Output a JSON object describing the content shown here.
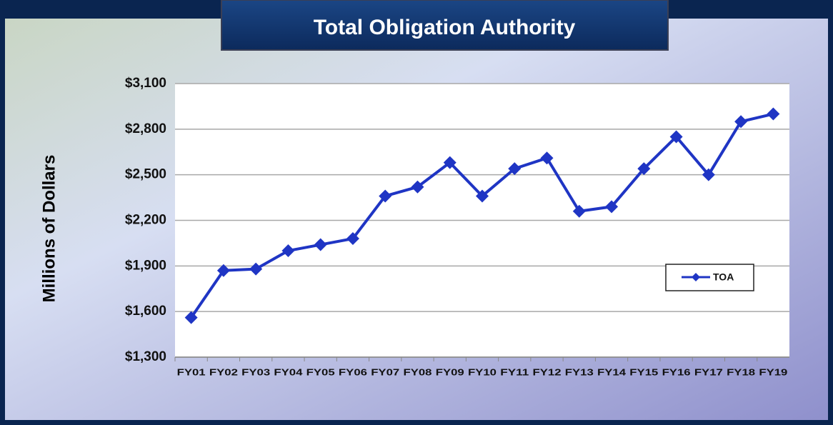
{
  "chart_data": {
    "type": "line",
    "title": "Total Obligation Authority",
    "y_label": "Millions of Dollars",
    "categories": [
      "FY01",
      "FY02",
      "FY03",
      "FY04",
      "FY05",
      "FY06",
      "FY07",
      "FY08",
      "FY09",
      "FY10",
      "FY11",
      "FY12",
      "FY13",
      "FY14",
      "FY15",
      "FY16",
      "FY17",
      "FY18",
      "FY19"
    ],
    "series": [
      {
        "name": "TOA",
        "color": "#1f35c4",
        "values": [
          1560,
          1870,
          1880,
          2000,
          2040,
          2080,
          2360,
          2420,
          2580,
          2360,
          2540,
          2610,
          2260,
          2290,
          2540,
          2750,
          2500,
          2850,
          2900
        ]
      }
    ],
    "ylim": [
      1300,
      3100
    ],
    "yticks": [
      {
        "value": 1300,
        "label": "$1,300"
      },
      {
        "value": 1600,
        "label": "$1,600"
      },
      {
        "value": 1900,
        "label": "$1,900"
      },
      {
        "value": 2200,
        "label": "$2,200"
      },
      {
        "value": 2500,
        "label": "$2,500"
      },
      {
        "value": 2800,
        "label": "$2,800"
      },
      {
        "value": 3100,
        "label": "$3,100"
      }
    ],
    "grid": true,
    "legend": "right"
  }
}
